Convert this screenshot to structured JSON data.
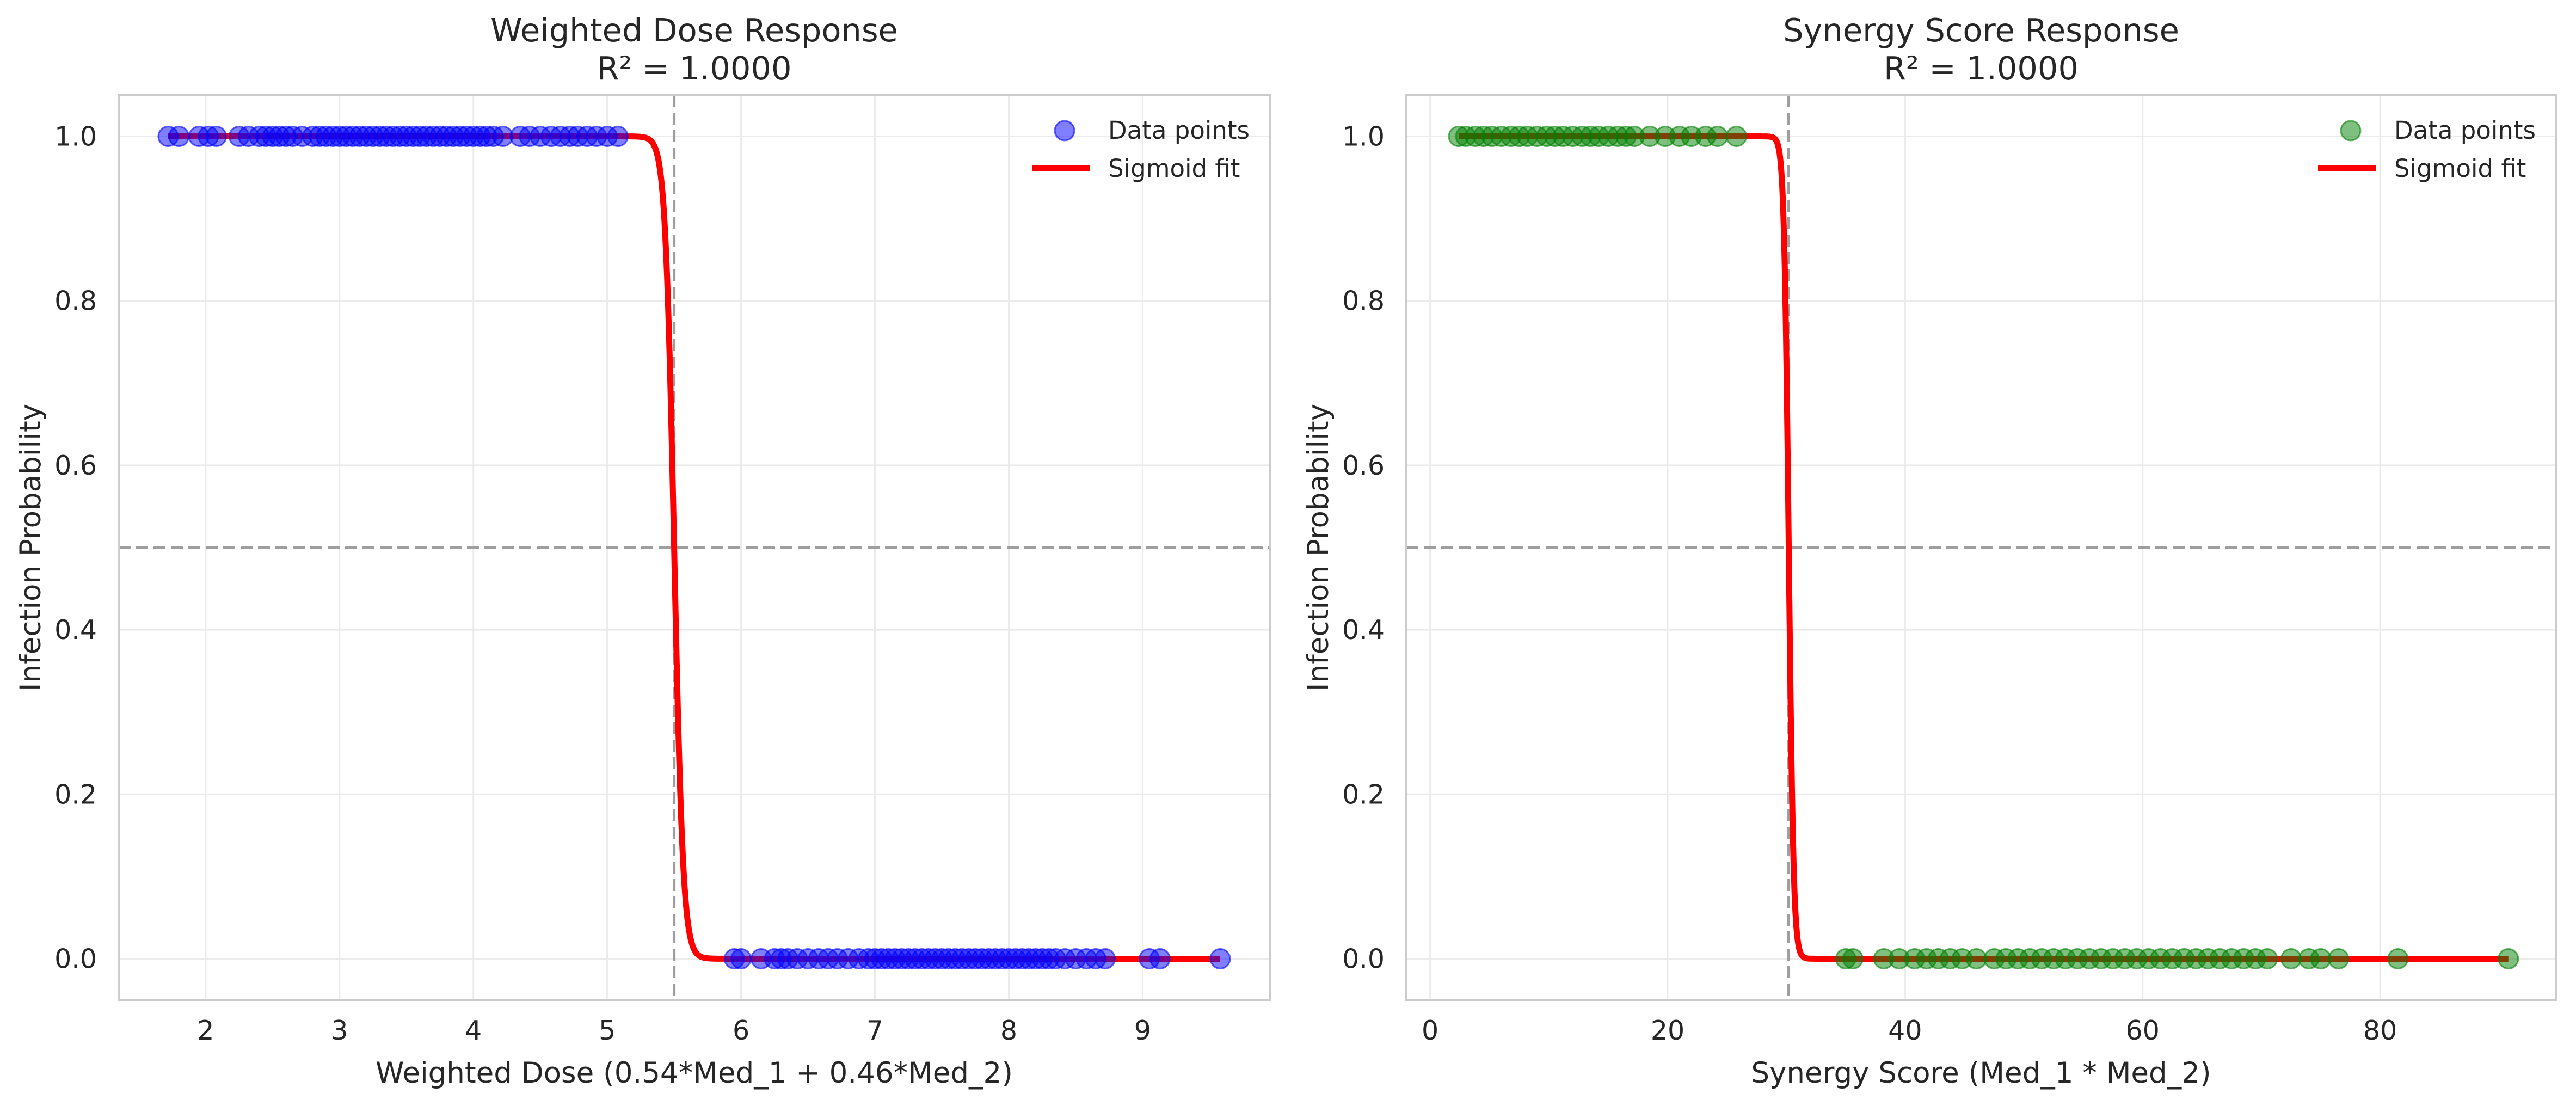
{
  "chart_data": [
    {
      "type": "scatter",
      "title": "Weighted Dose Response",
      "subtitle": "R² = 1.0000",
      "xlabel": "Weighted Dose (0.54*Med_1 + 0.46*Med_2)",
      "ylabel": "Infection Probability",
      "xlim": [
        1.35,
        9.95
      ],
      "ylim": [
        -0.05,
        1.05
      ],
      "xticks": [
        2,
        3,
        4,
        5,
        6,
        7,
        8,
        9
      ],
      "yticks": [
        0.0,
        0.2,
        0.4,
        0.6,
        0.8,
        1.0
      ],
      "grid": true,
      "legend": "top-right",
      "reference_lines": {
        "x": 5.5,
        "y": 0.5
      },
      "series": [
        {
          "name": "Data points",
          "kind": "scatter",
          "color": "#0000ff",
          "points": [
            [
              1.72,
              1
            ],
            [
              1.8,
              1
            ],
            [
              1.95,
              1
            ],
            [
              2.02,
              1
            ],
            [
              2.08,
              1
            ],
            [
              2.25,
              1
            ],
            [
              2.32,
              1
            ],
            [
              2.4,
              1
            ],
            [
              2.45,
              1
            ],
            [
              2.5,
              1
            ],
            [
              2.55,
              1
            ],
            [
              2.6,
              1
            ],
            [
              2.65,
              1
            ],
            [
              2.72,
              1
            ],
            [
              2.8,
              1
            ],
            [
              2.85,
              1
            ],
            [
              2.9,
              1
            ],
            [
              2.95,
              1
            ],
            [
              3.0,
              1
            ],
            [
              3.05,
              1
            ],
            [
              3.1,
              1
            ],
            [
              3.15,
              1
            ],
            [
              3.2,
              1
            ],
            [
              3.25,
              1
            ],
            [
              3.3,
              1
            ],
            [
              3.35,
              1
            ],
            [
              3.4,
              1
            ],
            [
              3.45,
              1
            ],
            [
              3.5,
              1
            ],
            [
              3.55,
              1
            ],
            [
              3.6,
              1
            ],
            [
              3.65,
              1
            ],
            [
              3.7,
              1
            ],
            [
              3.75,
              1
            ],
            [
              3.8,
              1
            ],
            [
              3.85,
              1
            ],
            [
              3.9,
              1
            ],
            [
              3.95,
              1
            ],
            [
              4.0,
              1
            ],
            [
              4.05,
              1
            ],
            [
              4.1,
              1
            ],
            [
              4.15,
              1
            ],
            [
              4.22,
              1
            ],
            [
              4.35,
              1
            ],
            [
              4.42,
              1
            ],
            [
              4.5,
              1
            ],
            [
              4.58,
              1
            ],
            [
              4.65,
              1
            ],
            [
              4.72,
              1
            ],
            [
              4.78,
              1
            ],
            [
              4.85,
              1
            ],
            [
              4.92,
              1
            ],
            [
              5.0,
              1
            ],
            [
              5.08,
              1
            ],
            [
              5.95,
              0
            ],
            [
              6.0,
              0
            ],
            [
              6.15,
              0
            ],
            [
              6.25,
              0
            ],
            [
              6.3,
              0
            ],
            [
              6.35,
              0
            ],
            [
              6.42,
              0
            ],
            [
              6.5,
              0
            ],
            [
              6.58,
              0
            ],
            [
              6.65,
              0
            ],
            [
              6.72,
              0
            ],
            [
              6.8,
              0
            ],
            [
              6.88,
              0
            ],
            [
              6.95,
              0
            ],
            [
              7.0,
              0
            ],
            [
              7.05,
              0
            ],
            [
              7.1,
              0
            ],
            [
              7.15,
              0
            ],
            [
              7.2,
              0
            ],
            [
              7.25,
              0
            ],
            [
              7.3,
              0
            ],
            [
              7.35,
              0
            ],
            [
              7.4,
              0
            ],
            [
              7.45,
              0
            ],
            [
              7.5,
              0
            ],
            [
              7.55,
              0
            ],
            [
              7.6,
              0
            ],
            [
              7.65,
              0
            ],
            [
              7.7,
              0
            ],
            [
              7.75,
              0
            ],
            [
              7.8,
              0
            ],
            [
              7.85,
              0
            ],
            [
              7.9,
              0
            ],
            [
              7.95,
              0
            ],
            [
              8.0,
              0
            ],
            [
              8.05,
              0
            ],
            [
              8.1,
              0
            ],
            [
              8.15,
              0
            ],
            [
              8.2,
              0
            ],
            [
              8.25,
              0
            ],
            [
              8.3,
              0
            ],
            [
              8.35,
              0
            ],
            [
              8.42,
              0
            ],
            [
              8.5,
              0
            ],
            [
              8.58,
              0
            ],
            [
              8.65,
              0
            ],
            [
              8.72,
              0
            ],
            [
              9.05,
              0
            ],
            [
              9.13,
              0
            ],
            [
              9.58,
              0
            ]
          ]
        },
        {
          "name": "Sigmoid fit",
          "kind": "line",
          "color": "#ff0000",
          "x_range": [
            1.72,
            9.58
          ],
          "midpoint": 5.5,
          "steepness": 30
        }
      ]
    },
    {
      "type": "scatter",
      "title": "Synergy Score Response",
      "subtitle": "R² = 1.0000",
      "xlabel": "Synergy Score (Med_1 * Med_2)",
      "ylabel": "Infection Probability",
      "xlim": [
        -2,
        94.8
      ],
      "ylim": [
        -0.05,
        1.05
      ],
      "xticks": [
        0,
        20,
        40,
        60,
        80
      ],
      "yticks": [
        0.0,
        0.2,
        0.4,
        0.6,
        0.8,
        1.0
      ],
      "grid": true,
      "legend": "top-right",
      "reference_lines": {
        "x": 30.2,
        "y": 0.5
      },
      "series": [
        {
          "name": "Data points",
          "kind": "scatter",
          "color": "#008000",
          "points": [
            [
              2.4,
              1
            ],
            [
              3.0,
              1
            ],
            [
              3.8,
              1
            ],
            [
              4.5,
              1
            ],
            [
              5.2,
              1
            ],
            [
              6.0,
              1
            ],
            [
              6.8,
              1
            ],
            [
              7.5,
              1
            ],
            [
              8.2,
              1
            ],
            [
              9.0,
              1
            ],
            [
              9.8,
              1
            ],
            [
              10.5,
              1
            ],
            [
              11.2,
              1
            ],
            [
              12.0,
              1
            ],
            [
              12.8,
              1
            ],
            [
              13.5,
              1
            ],
            [
              14.2,
              1
            ],
            [
              15.0,
              1
            ],
            [
              15.8,
              1
            ],
            [
              16.5,
              1
            ],
            [
              17.2,
              1
            ],
            [
              18.5,
              1
            ],
            [
              19.8,
              1
            ],
            [
              21.0,
              1
            ],
            [
              22.0,
              1
            ],
            [
              23.2,
              1
            ],
            [
              24.2,
              1
            ],
            [
              25.8,
              1
            ],
            [
              35.0,
              0
            ],
            [
              35.6,
              0
            ],
            [
              38.2,
              0
            ],
            [
              39.5,
              0
            ],
            [
              40.8,
              0
            ],
            [
              41.8,
              0
            ],
            [
              42.8,
              0
            ],
            [
              43.8,
              0
            ],
            [
              44.8,
              0
            ],
            [
              46.0,
              0
            ],
            [
              47.5,
              0
            ],
            [
              48.5,
              0
            ],
            [
              49.5,
              0
            ],
            [
              50.5,
              0
            ],
            [
              51.5,
              0
            ],
            [
              52.5,
              0
            ],
            [
              53.5,
              0
            ],
            [
              54.5,
              0
            ],
            [
              55.5,
              0
            ],
            [
              56.5,
              0
            ],
            [
              57.5,
              0
            ],
            [
              58.5,
              0
            ],
            [
              59.5,
              0
            ],
            [
              60.5,
              0
            ],
            [
              61.5,
              0
            ],
            [
              62.5,
              0
            ],
            [
              63.5,
              0
            ],
            [
              64.5,
              0
            ],
            [
              65.5,
              0
            ],
            [
              66.5,
              0
            ],
            [
              67.5,
              0
            ],
            [
              68.5,
              0
            ],
            [
              69.5,
              0
            ],
            [
              70.5,
              0
            ],
            [
              72.5,
              0
            ],
            [
              74.0,
              0
            ],
            [
              75.0,
              0
            ],
            [
              76.5,
              0
            ],
            [
              81.5,
              0
            ],
            [
              90.8,
              0
            ]
          ]
        },
        {
          "name": "Sigmoid fit",
          "kind": "line",
          "color": "#ff0000",
          "x_range": [
            2.4,
            90.8
          ],
          "midpoint": 30.2,
          "steepness": 5
        }
      ]
    }
  ]
}
